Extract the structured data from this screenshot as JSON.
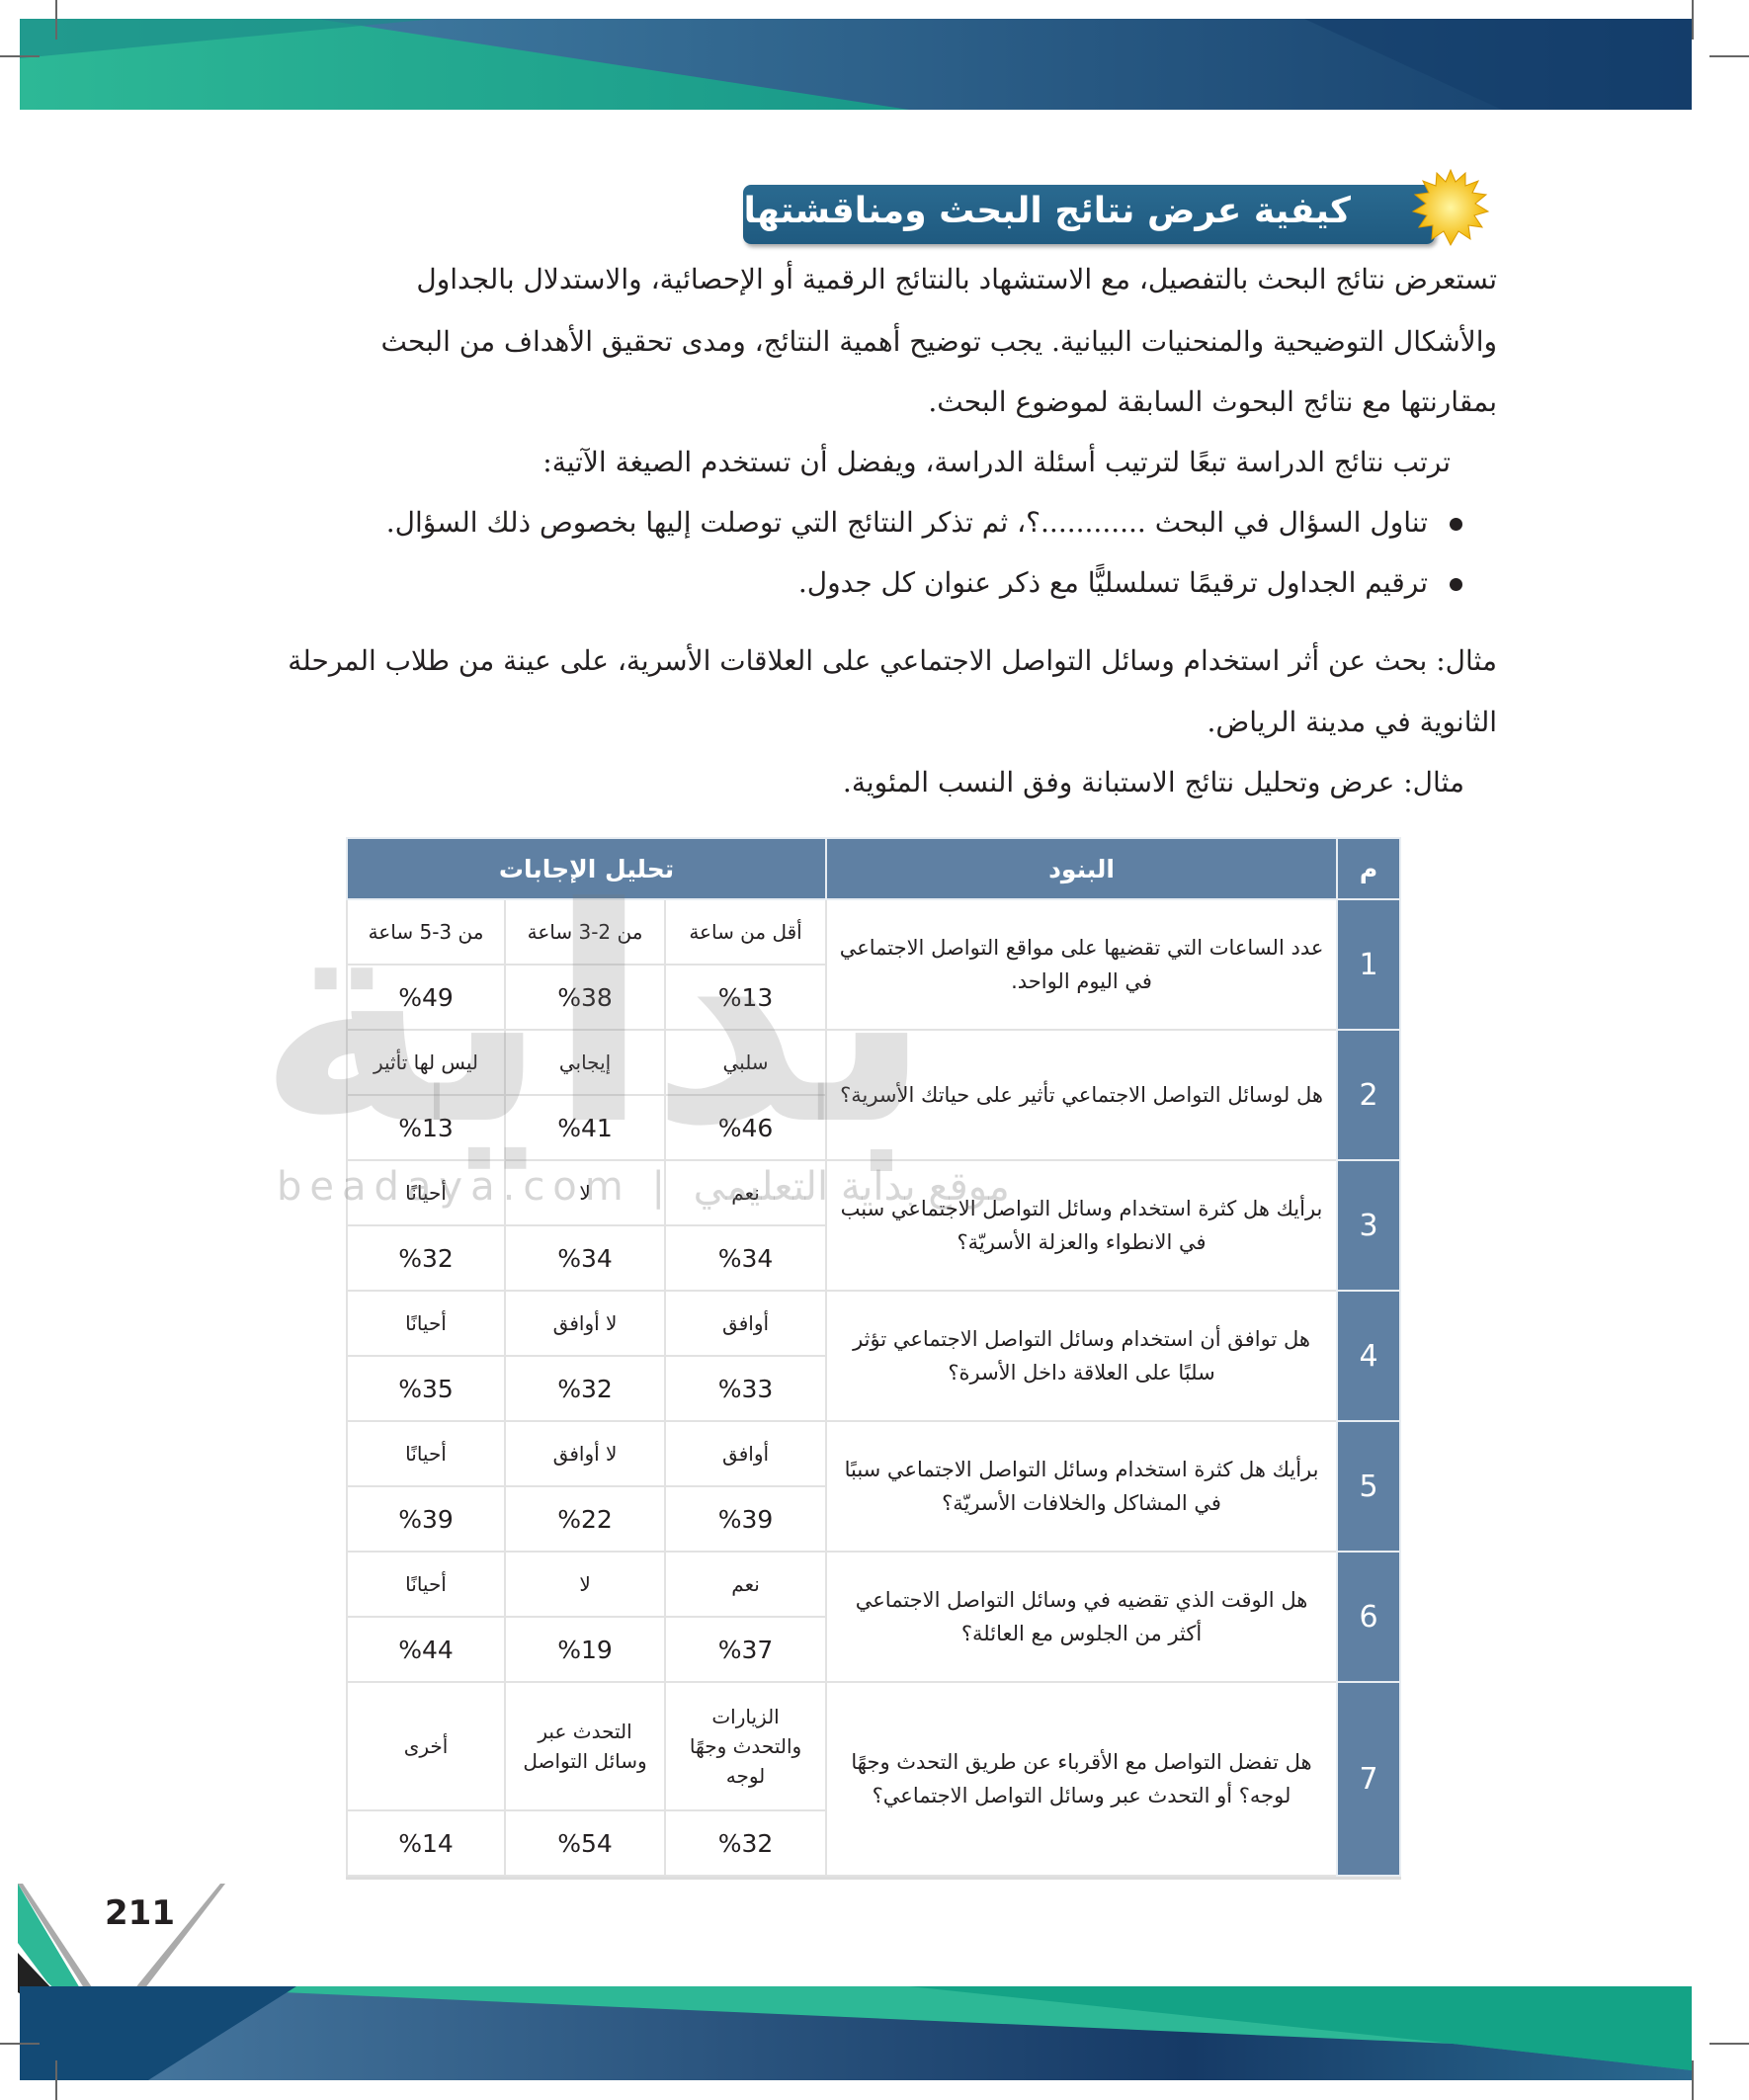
{
  "header": {
    "title": "كيفية عرض نتائج البحث ومناقشتها",
    "title_icon": "starburst-icon"
  },
  "paragraphs": [
    "تستعرض نتائج البحث بالتفصيل، مع الاستشهاد بالنتائج الرقمية أو الإحصائية، والاستدلال بالجداول",
    "والأشكال التوضيحية والمنحنيات البيانية. يجب توضيح أهمية النتائج، ومدى تحقيق الأهداف من البحث",
    "بمقارنتها مع نتائج البحوث السابقة لموضوع البحث.",
    "ترتب نتائج الدراسة تبعًا لترتيب أسئلة الدراسة، ويفضل أن تستخدم الصيغة الآتية:"
  ],
  "bullets": [
    "تناول السؤال في البحث ............؟، ثم تذكر النتائج التي توصلت إليها بخصوص ذلك السؤال.",
    "ترقيم الجداول ترقيمًا تسلسليًّا مع ذكر عنوان كل جدول."
  ],
  "example": [
    "مثال: بحث عن  أثر استخدام وسائل التواصل الاجتماعي على العلاقات الأسرية، على عينة من طلاب المرحلة",
    "الثانوية في مدينة الرياض.",
    "مثال: عرض وتحليل نتائج الاستبانة وفق النسب المئوية."
  ],
  "table": {
    "headers": {
      "num": "م",
      "items": "البنود",
      "analysis": "تحليل الإجابات"
    },
    "rows": [
      {
        "num": "1",
        "question": "عدد الساعات التي تقضيها على مواقع التواصل الاجتماعي في اليوم الواحد.",
        "options": [
          "أقل من ساعة",
          "من 2-3 ساعة",
          "من 3-5 ساعة"
        ],
        "values": [
          "%13",
          "%38",
          "%49"
        ]
      },
      {
        "num": "2",
        "question": "هل لوسائل التواصل الاجتماعي تأثير على حياتك الأسرية؟",
        "options": [
          "سلبي",
          "إيجابي",
          "ليس لها تأثير"
        ],
        "values": [
          "%46",
          "%41",
          "%13"
        ]
      },
      {
        "num": "3",
        "question": "برأيك هل كثرة استخدام وسائل التواصل الاجتماعي سبب في الانطواء والعزلة الأسريّة؟",
        "options": [
          "نعم",
          "لا",
          "أحيانًا"
        ],
        "values": [
          "%34",
          "%34",
          "%32"
        ]
      },
      {
        "num": "4",
        "question": "هل توافق أن استخدام وسائل التواصل الاجتماعي تؤثر سلبًا على العلاقة داخل الأسرة؟",
        "options": [
          "أوافق",
          "لا أوافق",
          "أحيانًا"
        ],
        "values": [
          "%33",
          "%32",
          "%35"
        ]
      },
      {
        "num": "5",
        "question": "برأيك هل كثرة استخدام وسائل التواصل الاجتماعي سببًا في المشاكل والخلافات الأسريّة؟",
        "options": [
          "أوافق",
          "لا أوافق",
          "أحيانًا"
        ],
        "values": [
          "%39",
          "%22",
          "%39"
        ]
      },
      {
        "num": "6",
        "question": "هل الوقت الذي تقضيه في وسائل التواصل الاجتماعي أكثر من الجلوس مع العائلة؟",
        "options": [
          "نعم",
          "لا",
          "أحيانًا"
        ],
        "values": [
          "%37",
          "%19",
          "%44"
        ]
      },
      {
        "num": "7",
        "question": "هل تفضل التواصل مع الأقرباء عن طريق التحدث وجهًا لوجه؟ أو التحدث عبر وسائل التواصل الاجتماعي؟",
        "options": [
          "الزيارات والتحدث وجهًا لوجه",
          "التحدث عبر وسائل التواصل",
          "أخرى"
        ],
        "values": [
          "%32",
          "%54",
          "%14"
        ]
      }
    ]
  },
  "watermark": {
    "logo": "بداية",
    "site": "beadaya.com | موقع بداية التعليمي"
  },
  "footer": {
    "page_number": "211"
  },
  "colors": {
    "title_bg": "#1f5a80",
    "table_header": "#5f80a3",
    "teal": "#2db896",
    "navy": "#163a66"
  }
}
